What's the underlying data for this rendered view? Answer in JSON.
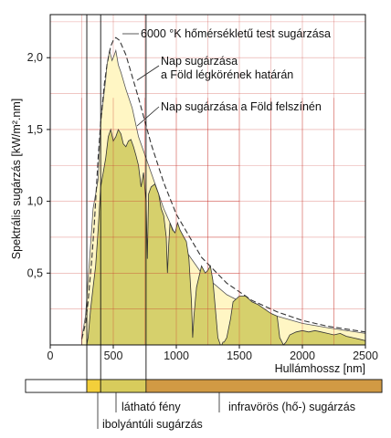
{
  "chart_data": {
    "type": "area",
    "xlabel": "Hullámhossz [nm]",
    "ylabel": "Spektrális sugárzás [kW/m².nm]",
    "xlim": [
      0,
      2500
    ],
    "ylim": [
      0,
      2.3
    ],
    "x_ticks": [
      0,
      500,
      1000,
      1500,
      2000,
      2500
    ],
    "y_ticks": [
      0.5,
      1.0,
      1.5,
      2.0
    ],
    "x_tick_labels": [
      "0",
      "500",
      "1000",
      "1500",
      "2000",
      "2500"
    ],
    "y_tick_labels": [
      "0,5",
      "1,0",
      "1,5",
      "2,0"
    ],
    "annotations": {
      "blackbody": "6000 °K hőmérsékletű test sugárzása",
      "top_atmosphere_1": "Nap sugárzása",
      "top_atmosphere_2": "a Föld légkörének határán",
      "surface": "Nap sugárzása a Föld felszínén"
    },
    "series": [
      {
        "name": "6000 °K hőmérsékletű test sugárzása",
        "style": "dashed",
        "x": [
          250,
          280,
          300,
          330,
          350,
          380,
          400,
          430,
          450,
          480,
          500,
          520,
          550,
          600,
          650,
          700,
          800,
          900,
          1000,
          1200,
          1400,
          1600,
          1800,
          2000,
          2200,
          2500
        ],
        "y": [
          0.04,
          0.15,
          0.3,
          0.6,
          0.85,
          1.3,
          1.55,
          1.82,
          1.95,
          2.08,
          2.12,
          2.14,
          2.12,
          2.02,
          1.87,
          1.72,
          1.4,
          1.13,
          0.91,
          0.61,
          0.43,
          0.31,
          0.23,
          0.17,
          0.13,
          0.09
        ]
      },
      {
        "name": "Nap sugárzása a Föld légkörének határán",
        "style": "filled",
        "color": "#fff6c4",
        "x": [
          250,
          280,
          300,
          320,
          340,
          360,
          380,
          400,
          420,
          440,
          450,
          470,
          490,
          500,
          520,
          540,
          560,
          600,
          650,
          700,
          800,
          900,
          1000,
          1200,
          1400,
          1600,
          1800,
          2000,
          2200,
          2500
        ],
        "y": [
          0.05,
          0.2,
          0.45,
          0.7,
          0.95,
          1.05,
          1.15,
          1.55,
          1.7,
          1.85,
          1.95,
          2.05,
          1.98,
          2.0,
          2.05,
          1.95,
          1.9,
          1.78,
          1.65,
          1.45,
          1.2,
          0.95,
          0.75,
          0.5,
          0.35,
          0.26,
          0.2,
          0.15,
          0.12,
          0.08
        ]
      },
      {
        "name": "Nap sugárzása a Föld felszínén",
        "style": "filled",
        "color": "#d6d06c",
        "x": [
          290,
          300,
          320,
          340,
          360,
          380,
          400,
          420,
          440,
          460,
          480,
          500,
          520,
          540,
          560,
          580,
          600,
          620,
          640,
          660,
          680,
          700,
          720,
          740,
          760,
          770,
          780,
          800,
          830,
          860,
          880,
          900,
          920,
          930,
          940,
          950,
          970,
          990,
          1010,
          1030,
          1060,
          1080,
          1100,
          1120,
          1130,
          1140,
          1160,
          1200,
          1230,
          1250,
          1270,
          1290,
          1310,
          1330,
          1350,
          1360,
          1370,
          1380,
          1400,
          1430,
          1450,
          1500,
          1550,
          1600,
          1650,
          1700,
          1750,
          1800,
          1820,
          1850,
          1870,
          1900,
          1950,
          2000,
          2050,
          2100,
          2150,
          2200,
          2250,
          2300,
          2350,
          2400,
          2450,
          2500
        ],
        "y": [
          0.0,
          0.05,
          0.25,
          0.4,
          0.55,
          0.8,
          1.1,
          1.2,
          1.3,
          1.45,
          1.5,
          1.42,
          1.45,
          1.5,
          1.47,
          1.4,
          1.38,
          1.42,
          1.43,
          1.38,
          1.32,
          1.25,
          1.1,
          1.2,
          1.0,
          0.6,
          1.05,
          1.1,
          1.12,
          1.05,
          0.95,
          0.9,
          0.75,
          0.5,
          0.7,
          0.85,
          0.8,
          0.78,
          0.85,
          0.8,
          0.75,
          0.72,
          0.6,
          0.3,
          0.05,
          0.2,
          0.4,
          0.55,
          0.5,
          0.52,
          0.55,
          0.45,
          0.25,
          0.05,
          0.0,
          0.0,
          0.02,
          0.02,
          0.05,
          0.18,
          0.3,
          0.34,
          0.34,
          0.3,
          0.28,
          0.25,
          0.22,
          0.2,
          0.05,
          0.0,
          0.02,
          0.07,
          0.09,
          0.1,
          0.09,
          0.1,
          0.09,
          0.08,
          0.07,
          0.08,
          0.06,
          0.05,
          0.04,
          0.03
        ]
      }
    ],
    "bands": [
      {
        "name": "",
        "from": 0,
        "to": 290,
        "color": "#ffffff"
      },
      {
        "name": "ibolyántúli sugárzás",
        "from": 290,
        "to": 400,
        "color": "#f3cf3a"
      },
      {
        "name": "látható fény",
        "from": 400,
        "to": 760,
        "color": "#d8cc5c"
      },
      {
        "name": "infravörös (hő-) sugárzás",
        "from": 760,
        "to": 2500,
        "color": "#d19a44"
      }
    ],
    "grid": true,
    "colors": {
      "grid": "#c8322a",
      "axis": "#111111"
    }
  }
}
